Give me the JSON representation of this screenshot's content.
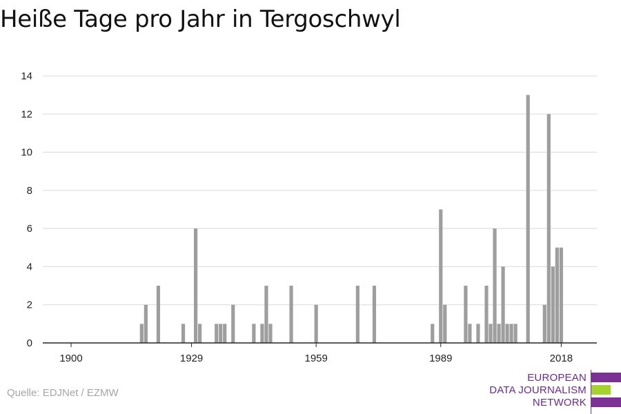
{
  "title": "Heiße Tage pro Jahr in Tergoschwyl",
  "source": "Quelle: EDJNet / EZMW",
  "logo": {
    "lines": [
      "EUROPEAN",
      "DATA JOURNALISM",
      "NETWORK"
    ],
    "colors": {
      "purple": "#7b3294",
      "green": "#a6d22e"
    }
  },
  "chart_data": {
    "type": "bar",
    "title": "Heiße Tage pro Jahr in Tergoschwyl",
    "xlabel": "",
    "ylabel": "",
    "xlim": [
      1900,
      2021
    ],
    "ylim": [
      0,
      14
    ],
    "yticks": [
      0,
      2,
      4,
      6,
      8,
      10,
      12,
      14
    ],
    "xticks": [
      1900,
      1929,
      1959,
      1989,
      2018
    ],
    "grid": true,
    "bar_color": "#9e9e9e",
    "x": [
      1917,
      1918,
      1921,
      1927,
      1930,
      1931,
      1935,
      1936,
      1937,
      1939,
      1944,
      1946,
      1947,
      1948,
      1953,
      1959,
      1969,
      1973,
      1987,
      1989,
      1990,
      1995,
      1996,
      1998,
      2000,
      2001,
      2002,
      2003,
      2004,
      2005,
      2006,
      2007,
      2010,
      2014,
      2015,
      2016,
      2017,
      2018
    ],
    "values": [
      1,
      2,
      3,
      1,
      6,
      1,
      1,
      1,
      1,
      2,
      1,
      1,
      3,
      1,
      3,
      2,
      3,
      3,
      1,
      7,
      2,
      3,
      1,
      1,
      3,
      1,
      6,
      1,
      4,
      1,
      1,
      1,
      13,
      2,
      12,
      4,
      5,
      5
    ]
  }
}
